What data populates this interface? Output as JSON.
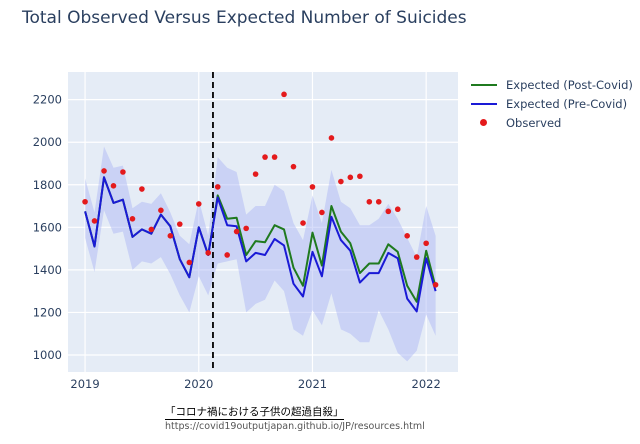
{
  "title": "Total Observed Versus Expected Number of Suicides",
  "chart_data": {
    "type": "line",
    "xlabel": "",
    "ylabel": "",
    "xlim": [
      2018.85,
      2022.28
    ],
    "ylim": [
      920,
      2330
    ],
    "x_ticks": [
      2019,
      2020,
      2021,
      2022
    ],
    "y_ticks": [
      1000,
      1200,
      1400,
      1600,
      1800,
      2000,
      2200
    ],
    "grid": true,
    "legend_position": "top-right outside",
    "vline": {
      "x": 2020.125,
      "style": "dashed",
      "color": "#000000"
    },
    "x": [
      2019.0,
      2019.083,
      2019.167,
      2019.25,
      2019.333,
      2019.417,
      2019.5,
      2019.583,
      2019.667,
      2019.75,
      2019.833,
      2019.917,
      2020.0,
      2020.083,
      2020.167,
      2020.25,
      2020.333,
      2020.417,
      2020.5,
      2020.583,
      2020.667,
      2020.75,
      2020.833,
      2020.917,
      2021.0,
      2021.083,
      2021.167,
      2021.25,
      2021.333,
      2021.417,
      2021.5,
      2021.583,
      2021.667,
      2021.75,
      2021.833,
      2021.917,
      2022.0,
      2022.083
    ],
    "band": {
      "lower": [
        1550,
        1390,
        1680,
        1570,
        1580,
        1400,
        1440,
        1430,
        1460,
        1380,
        1280,
        1200,
        1370,
        1280,
        1430,
        1440,
        1450,
        1200,
        1240,
        1260,
        1350,
        1300,
        1120,
        1090,
        1210,
        1140,
        1290,
        1120,
        1100,
        1060,
        1060,
        1210,
        1120,
        1010,
        970,
        1020,
        1190,
        1090
      ],
      "upper": [
        1830,
        1670,
        1980,
        1880,
        1890,
        1690,
        1720,
        1710,
        1760,
        1670,
        1560,
        1520,
        1730,
        1560,
        1930,
        1880,
        1860,
        1660,
        1700,
        1700,
        1800,
        1770,
        1620,
        1540,
        1750,
        1620,
        1870,
        1720,
        1690,
        1610,
        1610,
        1640,
        1710,
        1640,
        1550,
        1460,
        1700,
        1560
      ]
    },
    "series": [
      {
        "name": "Expected (Post-Covid)",
        "color": "#1f7a1f",
        "values": [
          1675,
          1510,
          1835,
          1715,
          1730,
          1555,
          1590,
          1570,
          1660,
          1605,
          1450,
          1365,
          1600,
          1470,
          1750,
          1640,
          1645,
          1470,
          1535,
          1530,
          1610,
          1590,
          1410,
          1325,
          1575,
          1420,
          1700,
          1580,
          1525,
          1385,
          1430,
          1430,
          1520,
          1485,
          1325,
          1250,
          1490,
          1320
        ]
      },
      {
        "name": "Expected (Pre-Covid)",
        "color": "#1a1ad6",
        "values": [
          1675,
          1510,
          1835,
          1715,
          1730,
          1555,
          1590,
          1570,
          1660,
          1605,
          1450,
          1365,
          1600,
          1470,
          1740,
          1610,
          1605,
          1440,
          1480,
          1470,
          1545,
          1515,
          1335,
          1275,
          1485,
          1370,
          1650,
          1540,
          1490,
          1340,
          1385,
          1385,
          1480,
          1455,
          1265,
          1205,
          1455,
          1300
        ]
      },
      {
        "name": "Observed",
        "color": "#e41a1c",
        "mode": "markers",
        "values": [
          1720,
          1630,
          1865,
          1795,
          1860,
          1640,
          1780,
          1590,
          1680,
          1560,
          1615,
          1435,
          1710,
          1480,
          1790,
          1470,
          1580,
          1595,
          1850,
          1930,
          1930,
          2225,
          1885,
          1620,
          1790,
          1670,
          2020,
          1815,
          1835,
          1840,
          1720,
          1720,
          1675,
          1685,
          1560,
          1460,
          1525,
          1330
        ]
      }
    ]
  },
  "legend": {
    "items": [
      {
        "label": "Expected (Post-Covid)",
        "color": "#1f7a1f",
        "kind": "line"
      },
      {
        "label": "Expected (Pre-Covid)",
        "color": "#1a1ad6",
        "kind": "line"
      },
      {
        "label": "Observed",
        "color": "#e41a1c",
        "kind": "marker"
      }
    ]
  },
  "source": {
    "title": "「コロナ禍における子供の超過自殺」",
    "url": "https://covid19outputjapan.github.io/JP/resources.html"
  }
}
